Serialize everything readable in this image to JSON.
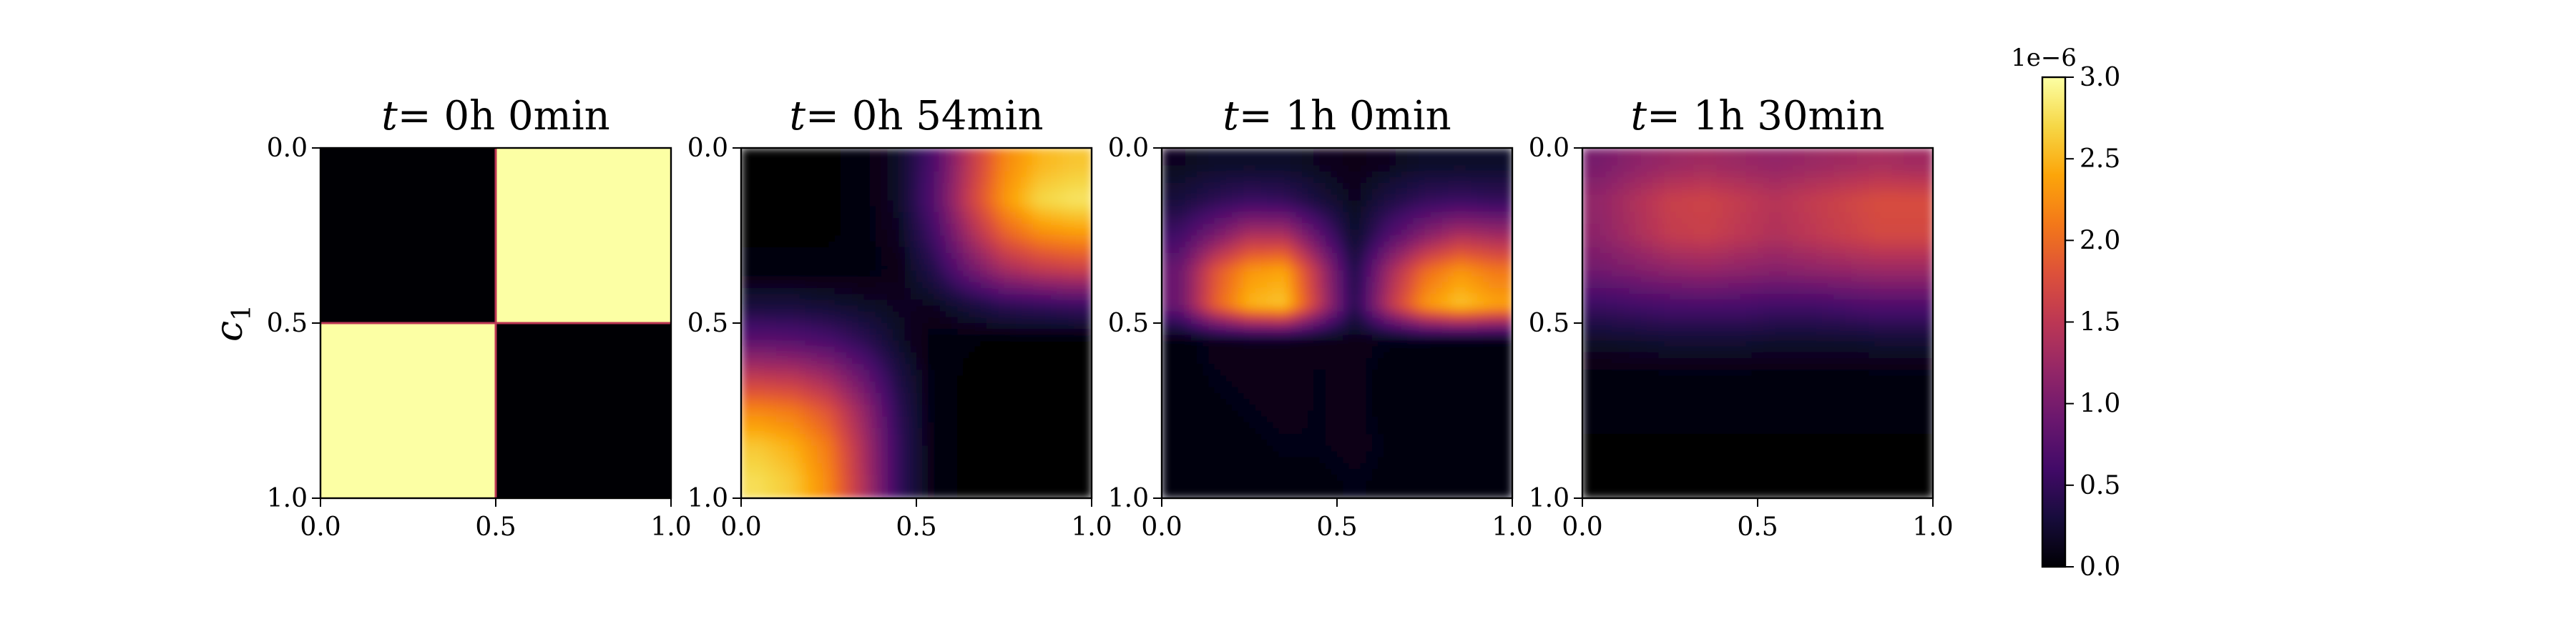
{
  "chart_data": {
    "type": "heatmap",
    "colormap": "inferno",
    "vmin": 0.0,
    "vmax": 3.0,
    "y_axis_label": "c_1",
    "colorbar": {
      "multiplier": "1e−6",
      "ticks": [
        "0.0",
        "0.5",
        "1.0",
        "1.5",
        "2.0",
        "2.5",
        "3.0"
      ]
    },
    "panels": [
      {
        "title_prefix": "t",
        "title_time": "= 0h 0min",
        "xlim": [
          0.0,
          1.0
        ],
        "ylim": [
          0.0,
          1.0
        ],
        "xticks": [
          "0.0",
          "0.5",
          "1.0"
        ],
        "yticks": [
          "0.0",
          "0.5",
          "1.0"
        ],
        "grid": [
          [
            0.0,
            0.0,
            0.0,
            0.0,
            0.0,
            3.0,
            3.0,
            3.0,
            3.0,
            3.0
          ],
          [
            0.0,
            0.0,
            0.0,
            0.0,
            0.0,
            3.0,
            3.0,
            3.0,
            3.0,
            3.0
          ],
          [
            0.0,
            0.0,
            0.0,
            0.0,
            0.0,
            3.0,
            3.0,
            3.0,
            3.0,
            3.0
          ],
          [
            0.0,
            0.0,
            0.0,
            0.0,
            0.0,
            3.0,
            3.0,
            3.0,
            3.0,
            3.0
          ],
          [
            0.0,
            0.0,
            0.0,
            0.0,
            0.0,
            3.0,
            3.0,
            3.0,
            3.0,
            3.0
          ],
          [
            3.0,
            3.0,
            3.0,
            3.0,
            3.0,
            0.0,
            0.0,
            0.0,
            0.0,
            0.0
          ],
          [
            3.0,
            3.0,
            3.0,
            3.0,
            3.0,
            0.0,
            0.0,
            0.0,
            0.0,
            0.0
          ],
          [
            3.0,
            3.0,
            3.0,
            3.0,
            3.0,
            0.0,
            0.0,
            0.0,
            0.0,
            0.0
          ],
          [
            3.0,
            3.0,
            3.0,
            3.0,
            3.0,
            0.0,
            0.0,
            0.0,
            0.0,
            0.0
          ],
          [
            3.0,
            3.0,
            3.0,
            3.0,
            3.0,
            0.0,
            0.0,
            0.0,
            0.0,
            0.0
          ]
        ]
      },
      {
        "title_prefix": "t",
        "title_time": "= 0h 54min",
        "xlim": [
          0.0,
          1.0
        ],
        "ylim": [
          0.0,
          1.0
        ],
        "xticks": [
          "0.0",
          "0.5",
          "1.0"
        ],
        "yticks": [
          "0.0",
          "0.5",
          "1.0"
        ],
        "grid": [
          [
            0.0,
            0.0,
            0.0,
            0.05,
            0.2,
            0.7,
            1.5,
            2.2,
            2.5,
            2.6
          ],
          [
            0.0,
            0.0,
            0.0,
            0.05,
            0.2,
            0.75,
            1.6,
            2.3,
            2.7,
            2.8
          ],
          [
            0.0,
            0.0,
            0.0,
            0.05,
            0.15,
            0.6,
            1.3,
            1.9,
            2.2,
            2.3
          ],
          [
            0.05,
            0.05,
            0.05,
            0.05,
            0.1,
            0.4,
            0.9,
            1.3,
            1.5,
            1.6
          ],
          [
            0.3,
            0.3,
            0.25,
            0.2,
            0.15,
            0.15,
            0.3,
            0.45,
            0.5,
            0.55
          ],
          [
            0.8,
            0.75,
            0.65,
            0.45,
            0.2,
            0.05,
            0.02,
            0.0,
            0.0,
            0.0
          ],
          [
            1.5,
            1.45,
            1.25,
            0.85,
            0.35,
            0.05,
            0.0,
            0.0,
            0.0,
            0.0
          ],
          [
            2.2,
            2.1,
            1.8,
            1.2,
            0.45,
            0.05,
            0.0,
            0.0,
            0.0,
            0.0
          ],
          [
            2.6,
            2.45,
            2.1,
            1.35,
            0.5,
            0.05,
            0.0,
            0.0,
            0.0,
            0.0
          ],
          [
            2.75,
            2.6,
            2.2,
            1.4,
            0.5,
            0.05,
            0.0,
            0.0,
            0.0,
            0.0
          ]
        ]
      },
      {
        "title_prefix": "t",
        "title_time": "= 1h 0min",
        "xlim": [
          0.0,
          1.0
        ],
        "ylim": [
          0.0,
          1.0
        ],
        "xticks": [
          "0.0",
          "0.5",
          "1.0"
        ],
        "yticks": [
          "0.0",
          "0.5",
          "1.0"
        ],
        "grid": [
          [
            0.15,
            0.2,
            0.2,
            0.2,
            0.15,
            0.1,
            0.15,
            0.2,
            0.2,
            0.2
          ],
          [
            0.3,
            0.45,
            0.55,
            0.5,
            0.3,
            0.15,
            0.35,
            0.5,
            0.55,
            0.5
          ],
          [
            0.6,
            1.0,
            1.4,
            1.4,
            0.8,
            0.2,
            0.7,
            1.1,
            1.4,
            1.3
          ],
          [
            0.9,
            1.8,
            2.3,
            2.4,
            1.4,
            0.35,
            1.3,
            2.0,
            2.3,
            2.1
          ],
          [
            0.9,
            1.9,
            2.5,
            2.6,
            1.5,
            0.4,
            1.5,
            2.3,
            2.6,
            2.4
          ],
          [
            0.05,
            0.1,
            0.12,
            0.12,
            0.1,
            0.1,
            0.08,
            0.08,
            0.06,
            0.05
          ],
          [
            0.05,
            0.08,
            0.1,
            0.1,
            0.08,
            0.1,
            0.05,
            0.03,
            0.02,
            0.02
          ],
          [
            0.03,
            0.06,
            0.08,
            0.1,
            0.08,
            0.1,
            0.05,
            0.03,
            0.02,
            0.02
          ],
          [
            0.03,
            0.05,
            0.06,
            0.08,
            0.08,
            0.1,
            0.07,
            0.05,
            0.04,
            0.04
          ],
          [
            0.02,
            0.05,
            0.05,
            0.06,
            0.06,
            0.08,
            0.06,
            0.06,
            0.05,
            0.05
          ]
        ]
      },
      {
        "title_prefix": "t",
        "title_time": "= 1h 30min",
        "xlim": [
          0.0,
          1.0
        ],
        "ylim": [
          0.0,
          1.0
        ],
        "xticks": [
          "0.0",
          "0.5",
          "1.0"
        ],
        "yticks": [
          "0.0",
          "0.5",
          "1.0"
        ],
        "grid": [
          [
            1.0,
            1.15,
            1.25,
            1.3,
            1.25,
            1.2,
            1.25,
            1.3,
            1.35,
            1.3
          ],
          [
            1.2,
            1.4,
            1.6,
            1.65,
            1.55,
            1.45,
            1.55,
            1.65,
            1.75,
            1.75
          ],
          [
            1.15,
            1.35,
            1.55,
            1.6,
            1.5,
            1.4,
            1.5,
            1.6,
            1.7,
            1.7
          ],
          [
            0.95,
            1.05,
            1.15,
            1.2,
            1.15,
            1.1,
            1.15,
            1.2,
            1.25,
            1.25
          ],
          [
            0.55,
            0.6,
            0.65,
            0.65,
            0.65,
            0.6,
            0.6,
            0.65,
            0.7,
            0.7
          ],
          [
            0.2,
            0.22,
            0.25,
            0.25,
            0.25,
            0.22,
            0.22,
            0.22,
            0.25,
            0.25
          ],
          [
            0.05,
            0.05,
            0.06,
            0.06,
            0.06,
            0.05,
            0.05,
            0.05,
            0.06,
            0.06
          ],
          [
            0.02,
            0.02,
            0.02,
            0.02,
            0.02,
            0.02,
            0.02,
            0.02,
            0.02,
            0.02
          ],
          [
            0.01,
            0.01,
            0.01,
            0.01,
            0.01,
            0.01,
            0.01,
            0.01,
            0.01,
            0.01
          ],
          [
            0.0,
            0.0,
            0.0,
            0.0,
            0.0,
            0.0,
            0.0,
            0.0,
            0.0,
            0.0
          ]
        ]
      }
    ]
  }
}
